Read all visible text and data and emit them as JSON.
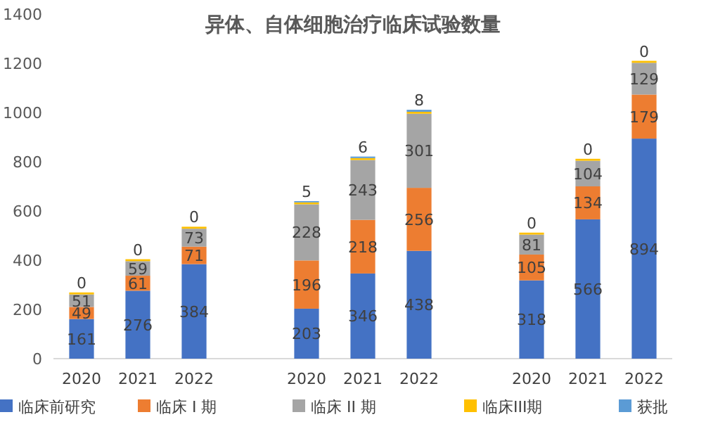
{
  "chart_data": {
    "type": "bar",
    "stacked": true,
    "title": "异体、自体细胞治疗临床试验数量",
    "categories": [
      "2020",
      "2021",
      "2022",
      null,
      "2020",
      "2021",
      "2022",
      null,
      "2020",
      "2021",
      "2022"
    ],
    "series": [
      {
        "name": "临床前研究",
        "color": "#4472c4",
        "values": [
          161,
          276,
          384,
          null,
          203,
          346,
          438,
          null,
          318,
          566,
          894
        ],
        "value_labels": [
          "161",
          "276",
          "384",
          null,
          "203",
          "346",
          "438",
          null,
          "318",
          "566",
          "894"
        ]
      },
      {
        "name": "临床 I 期",
        "color": "#ed7d31",
        "values": [
          49,
          61,
          71,
          null,
          196,
          218,
          256,
          null,
          105,
          134,
          179
        ],
        "value_labels": [
          "49",
          "61",
          "71",
          null,
          "196",
          "218",
          "256",
          null,
          "105",
          "134",
          "179"
        ]
      },
      {
        "name": "临床 II 期",
        "color": "#a5a5a5",
        "values": [
          51,
          59,
          73,
          null,
          228,
          243,
          301,
          null,
          81,
          104,
          129
        ],
        "value_labels": [
          "51",
          "59",
          "73",
          null,
          "228",
          "243",
          "301",
          null,
          "81",
          "104",
          "129"
        ]
      },
      {
        "name": "临床III期",
        "color": "#ffc000",
        "values": [
          8,
          8,
          8,
          null,
          8,
          8,
          8,
          null,
          8,
          8,
          8
        ]
      },
      {
        "name": "获批",
        "color": "#5b9bd5",
        "values": [
          0,
          0,
          0,
          null,
          5,
          6,
          8,
          null,
          0,
          0,
          0
        ],
        "value_labels": [
          "0",
          "0",
          "0",
          null,
          "5",
          "6",
          "8",
          null,
          "0",
          "0",
          "0"
        ]
      }
    ],
    "ylim": [
      0,
      1400
    ],
    "yticks": [
      0,
      200,
      400,
      600,
      800,
      1000,
      1200,
      1400
    ],
    "grid": false,
    "legend": "bottom"
  }
}
